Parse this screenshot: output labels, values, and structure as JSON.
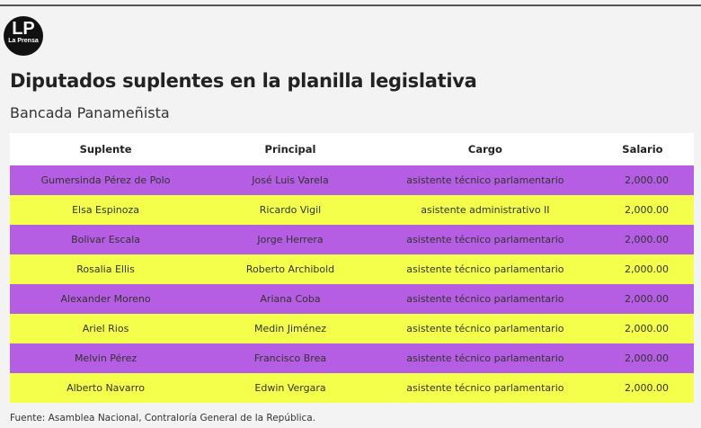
{
  "logo": {
    "initials": "LP",
    "name": "La Prensa"
  },
  "header": {
    "title": "Diputados suplentes en la planilla legislativa",
    "subtitle": "Bancada Panameñista"
  },
  "table": {
    "columns": [
      "Suplente",
      "Principal",
      "Cargo",
      "Salario"
    ],
    "rows": [
      [
        "Gumersinda Pérez de Polo",
        "José Luis Varela",
        "asistente técnico parlamentario",
        "2,000.00"
      ],
      [
        "Elsa Espinoza",
        "Ricardo Vigil",
        "asistente administrativo II",
        "2,000.00"
      ],
      [
        "Bolivar Escala",
        "Jorge Herrera",
        "asistente técnico parlamentario",
        "2,000.00"
      ],
      [
        "Rosalia Ellis",
        "Roberto Archibold",
        "asistente técnico parlamentario",
        "2,000.00"
      ],
      [
        "Alexander Moreno",
        "Ariana Coba",
        "asistente técnico parlamentario",
        "2,000.00"
      ],
      [
        "Ariel Rios",
        "Medin Jiménez",
        "asistente técnico parlamentario",
        "2,000.00"
      ],
      [
        "Melvin Pérez",
        "Francisco Brea",
        "asistente técnico parlamentario",
        "2,000.00"
      ],
      [
        "Alberto Navarro",
        "Edwin Vergara",
        "asistente técnico parlamentario",
        "2,000.00"
      ]
    ]
  },
  "footer": {
    "source": "Fuente: Asamblea Nacional, Contraloría General de la República."
  }
}
